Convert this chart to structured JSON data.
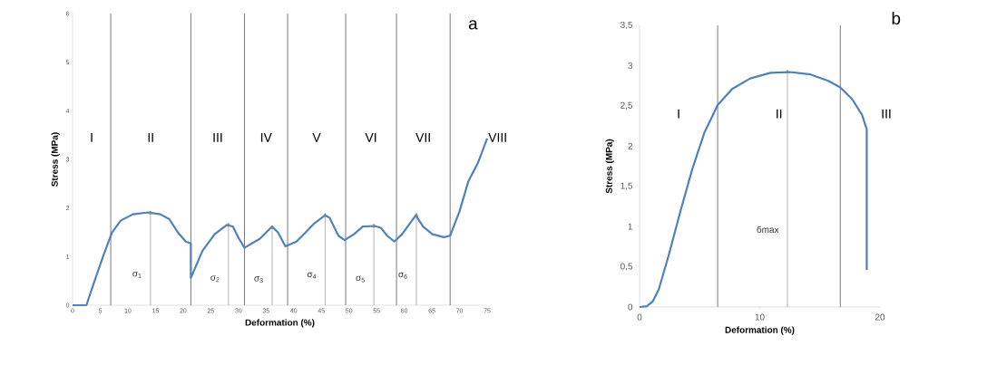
{
  "chart_data": [
    {
      "type": "line",
      "title": "a",
      "xlabel": "Deformation (%)",
      "ylabel": "Stress (MPa)",
      "x": [
        0,
        2.5,
        3.8,
        5.5,
        7.1,
        8.7,
        10.9,
        13.7,
        15.9,
        17.5,
        19.1,
        20.5,
        21.4,
        21.4,
        23.5,
        25.7,
        27.9,
        29,
        30.1,
        31.1,
        33.9,
        36.1,
        37.2,
        38.5,
        40.5,
        42.1,
        43.7,
        45.7,
        46.5,
        48.1,
        49.2,
        50.9,
        52.5,
        54.7,
        55.8,
        56.9,
        58.2,
        59.6,
        62.1,
        63.4,
        65.1,
        67.2,
        68.3,
        70,
        71.6,
        73.3,
        75
      ],
      "series": [
        {
          "type": "lollipop",
          "color": "#808080",
          "x": [
            14.1,
            28.2,
            36.1,
            45.7,
            54.5,
            62.2
          ],
          "values": [
            1.9,
            1.65,
            1.6,
            1.85,
            1.63,
            1.85
          ]
        },
        {
          "color": "#4f81bd",
          "values": [
            0,
            0,
            0.44,
            1.0,
            1.49,
            1.74,
            1.87,
            1.91,
            1.87,
            1.77,
            1.49,
            1.31,
            1.27,
            0.56,
            1.12,
            1.46,
            1.65,
            1.62,
            1.37,
            1.18,
            1.37,
            1.62,
            1.49,
            1.21,
            1.31,
            1.49,
            1.68,
            1.85,
            1.8,
            1.43,
            1.34,
            1.46,
            1.62,
            1.63,
            1.59,
            1.43,
            1.31,
            1.46,
            1.85,
            1.62,
            1.46,
            1.4,
            1.43,
            1.93,
            2.55,
            2.92,
            3.43
          ]
        }
      ],
      "xlim": [
        0,
        75
      ],
      "ylim": [
        0,
        6
      ],
      "xticks": [
        0,
        5,
        10,
        15,
        20,
        25,
        30,
        35,
        40,
        45,
        50,
        55,
        60,
        65,
        70,
        75
      ],
      "yticks": [
        0,
        1,
        2,
        3,
        4,
        5,
        6
      ],
      "ref_lines": [
        {
          "axis": "x",
          "value": 6.9,
          "color": "#404040"
        },
        {
          "axis": "x",
          "value": 21.4,
          "color": "#404040"
        },
        {
          "axis": "x",
          "value": 31.1,
          "color": "#404040"
        },
        {
          "axis": "x",
          "value": 38.9,
          "color": "#404040"
        },
        {
          "axis": "x",
          "value": 49.4,
          "color": "#404040"
        },
        {
          "axis": "x",
          "value": 58.6,
          "color": "#404040"
        },
        {
          "axis": "x",
          "value": 68.3,
          "color": "#404040"
        }
      ],
      "annotations": [
        "I",
        "II",
        "III",
        "IV",
        "V",
        "VI",
        "VII",
        "VIII",
        "σ$_{1}$",
        "σ$_{2}$",
        "σ$_{3}$",
        "σ$_{4}$",
        "σ$_{5}$",
        "σ$_{6}$"
      ]
    },
    {
      "type": "line",
      "title": "b",
      "xlabel": "Deformation (%)",
      "ylabel": "Stress (MPa)",
      "x": [
        0,
        0.6,
        1.1,
        1.6,
        2.4,
        3.4,
        4.4,
        5.4,
        6.5,
        7.7,
        9.2,
        10.9,
        12.5,
        14.2,
        15.7,
        16.7,
        17.7,
        18.5,
        18.9,
        18.9
      ],
      "series": [
        {
          "type": "lollipop",
          "color": "#808080",
          "x": [
            12.3
          ],
          "values": [
            2.92
          ]
        },
        {
          "color": "#4f81bd",
          "values": [
            0,
            0.01,
            0.07,
            0.22,
            0.63,
            1.19,
            1.72,
            2.17,
            2.51,
            2.71,
            2.84,
            2.91,
            2.92,
            2.89,
            2.81,
            2.73,
            2.58,
            2.39,
            2.21,
            0.46
          ]
        }
      ],
      "xlim": [
        0,
        20
      ],
      "ylim": [
        0,
        3.5
      ],
      "xticks": [
        0,
        10,
        20
      ],
      "yticks": [
        0,
        {
          "value": 0.5,
          "label": "0,5"
        },
        1,
        {
          "value": 1.5,
          "label": "1,5"
        },
        2,
        {
          "value": 2.5,
          "label": "2,5"
        },
        3,
        {
          "value": 3.5,
          "label": "3,5"
        }
      ],
      "ref_lines": [
        {
          "axis": "x",
          "value": 6.5,
          "color": "#404040"
        },
        {
          "axis": "x",
          "value": 16.7,
          "color": "#404040"
        }
      ],
      "annotations": [
        "I",
        "II",
        "III",
        "бmax"
      ]
    }
  ]
}
